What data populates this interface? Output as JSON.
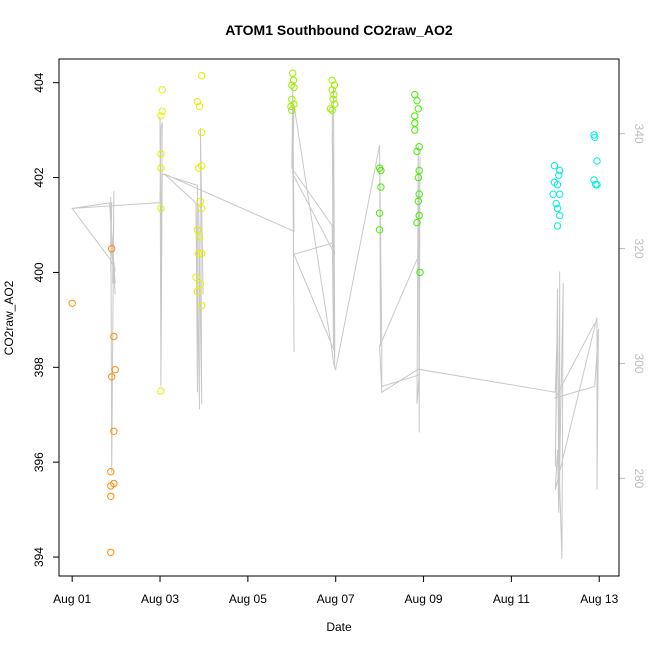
{
  "chart_data": {
    "type": "scatter",
    "title": "ATOM1 Southbound CO2raw_AO2",
    "xlabel": "Date",
    "ylabel": "CO2raw_AO2",
    "x_ticks": [
      "Aug 01",
      "Aug 03",
      "Aug 05",
      "Aug 07",
      "Aug 09",
      "Aug 11",
      "Aug 13"
    ],
    "x_tick_days": [
      1,
      3,
      5,
      7,
      9,
      11,
      13
    ],
    "xlim_days": [
      0.7,
      13.45
    ],
    "ylim": [
      393.6,
      404.5
    ],
    "y_ticks": [
      394,
      396,
      398,
      400,
      402,
      404
    ],
    "y2lim": [
      263,
      353
    ],
    "y2_ticks": [
      280,
      300,
      320,
      340
    ],
    "grid": false,
    "colors": {
      "orange": "#ff8c00",
      "yellow": "#e6f000",
      "lime": "#9cf000",
      "green": "#45ee00",
      "spring": "#00ee3a",
      "cyan": "#00eedd",
      "secondary_line": "#c8c8c8",
      "secondary_axis": "#bdbdbd"
    },
    "series": [
      {
        "color": "orange",
        "points": [
          [
            1.0,
            399.35
          ],
          [
            1.9,
            400.5
          ],
          [
            1.9,
            397.8
          ],
          [
            1.95,
            398.65
          ],
          [
            1.98,
            397.95
          ],
          [
            1.95,
            396.65
          ],
          [
            1.88,
            395.8
          ],
          [
            1.88,
            395.5
          ],
          [
            1.95,
            395.55
          ],
          [
            1.88,
            395.28
          ],
          [
            1.88,
            394.1
          ]
        ]
      },
      {
        "color": "yellow",
        "points": [
          [
            3.05,
            403.85
          ],
          [
            3.05,
            403.4
          ],
          [
            3.02,
            403.3
          ],
          [
            3.02,
            402.5
          ],
          [
            3.02,
            402.2
          ],
          [
            3.02,
            401.35
          ],
          [
            3.02,
            397.5
          ],
          [
            3.85,
            403.6
          ],
          [
            3.9,
            403.5
          ],
          [
            3.95,
            404.15
          ],
          [
            3.95,
            402.95
          ],
          [
            3.95,
            402.25
          ],
          [
            3.88,
            402.2
          ],
          [
            3.92,
            401.5
          ],
          [
            3.95,
            401.35
          ],
          [
            3.85,
            400.9
          ],
          [
            3.9,
            400.75
          ],
          [
            3.88,
            400.4
          ],
          [
            3.95,
            400.4
          ],
          [
            3.82,
            399.9
          ],
          [
            3.92,
            399.75
          ],
          [
            3.85,
            399.6
          ],
          [
            3.95,
            399.3
          ]
        ]
      },
      {
        "color": "lime",
        "points": [
          [
            6.02,
            404.2
          ],
          [
            6.04,
            404.05
          ],
          [
            6.0,
            403.95
          ],
          [
            6.05,
            403.9
          ],
          [
            6.0,
            403.65
          ],
          [
            6.05,
            403.55
          ],
          [
            5.98,
            403.5
          ],
          [
            6.0,
            403.42
          ],
          [
            6.92,
            404.05
          ],
          [
            6.97,
            403.95
          ],
          [
            6.92,
            403.85
          ],
          [
            6.96,
            403.75
          ],
          [
            6.94,
            403.65
          ],
          [
            6.98,
            403.55
          ],
          [
            6.88,
            403.45
          ],
          [
            6.92,
            403.42
          ]
        ]
      },
      {
        "color": "green",
        "points": [
          [
            8.0,
            402.2
          ],
          [
            8.03,
            402.15
          ],
          [
            8.03,
            401.8
          ],
          [
            8.0,
            401.25
          ],
          [
            8.0,
            400.9
          ],
          [
            8.8,
            403.75
          ],
          [
            8.85,
            403.62
          ],
          [
            8.88,
            403.45
          ],
          [
            8.8,
            403.3
          ],
          [
            8.8,
            403.15
          ],
          [
            8.8,
            403.0
          ],
          [
            8.9,
            402.65
          ],
          [
            8.85,
            402.55
          ],
          [
            8.9,
            402.15
          ],
          [
            8.88,
            402.0
          ],
          [
            8.9,
            401.65
          ],
          [
            8.88,
            401.5
          ],
          [
            8.9,
            401.2
          ],
          [
            8.85,
            401.05
          ],
          [
            8.92,
            400.0
          ]
        ]
      },
      {
        "color": "cyan",
        "points": [
          [
            11.98,
            402.25
          ],
          [
            12.1,
            402.15
          ],
          [
            12.08,
            402.05
          ],
          [
            11.98,
            401.9
          ],
          [
            12.05,
            401.85
          ],
          [
            12.1,
            401.65
          ],
          [
            11.95,
            401.65
          ],
          [
            12.02,
            401.45
          ],
          [
            12.05,
            401.35
          ],
          [
            12.1,
            401.2
          ],
          [
            12.05,
            400.98
          ],
          [
            12.88,
            402.9
          ],
          [
            12.9,
            402.85
          ],
          [
            12.95,
            402.35
          ],
          [
            12.88,
            401.95
          ],
          [
            12.92,
            401.85
          ],
          [
            12.95,
            401.85
          ]
        ]
      }
    ],
    "secondary_series": [
      {
        "name": "",
        "points": [
          [
            1.0,
            327
          ],
          [
            1.9,
            328
          ],
          [
            1.88,
            316
          ],
          [
            1.88,
            329
          ],
          [
            1.9,
            281
          ],
          [
            1.95,
            330
          ],
          [
            1.92,
            314
          ],
          [
            1.98,
            314
          ],
          [
            1.85,
            328
          ],
          [
            1.98,
            312
          ],
          [
            1.9,
            320
          ],
          [
            1.98,
            316
          ],
          [
            1.88,
            318
          ],
          [
            1.0,
            327
          ],
          [
            3.0,
            328
          ],
          [
            3.02,
            341
          ],
          [
            3.05,
            342
          ],
          [
            3.02,
            299
          ],
          [
            3.02,
            328
          ],
          [
            3.0,
            343
          ],
          [
            3.02,
            296
          ],
          [
            3.05,
            333
          ],
          [
            3.85,
            331
          ],
          [
            3.85,
            295
          ],
          [
            3.82,
            328
          ],
          [
            3.9,
            292
          ],
          [
            3.88,
            327
          ],
          [
            3.95,
            293
          ],
          [
            3.92,
            341
          ],
          [
            3.98,
            312
          ],
          [
            3.95,
            327
          ],
          [
            3.1,
            333
          ],
          [
            6.05,
            323
          ],
          [
            6.02,
            348
          ],
          [
            6.05,
            303
          ],
          [
            6.02,
            340
          ],
          [
            6.05,
            302
          ],
          [
            6.02,
            347
          ],
          [
            6.0,
            334
          ],
          [
            6.92,
            324
          ],
          [
            6.95,
            303
          ],
          [
            6.92,
            345
          ],
          [
            6.98,
            299
          ],
          [
            6.92,
            340
          ],
          [
            6.97,
            301
          ],
          [
            6.95,
            348
          ],
          [
            6.98,
            302
          ],
          [
            6.05,
            319
          ],
          [
            6.95,
            321
          ],
          [
            6.98,
            319
          ],
          [
            6.02,
            333
          ],
          [
            6.05,
            345
          ],
          [
            6.92,
            302
          ],
          [
            6.95,
            300
          ],
          [
            7.0,
            299
          ],
          [
            8.0,
            338
          ],
          [
            8.02,
            303
          ],
          [
            8.0,
            337
          ],
          [
            8.05,
            304
          ],
          [
            8.05,
            296
          ],
          [
            8.9,
            298
          ],
          [
            8.85,
            293
          ],
          [
            8.88,
            338
          ],
          [
            8.9,
            288
          ],
          [
            8.92,
            336
          ],
          [
            8.9,
            319
          ],
          [
            8.0,
            303
          ],
          [
            8.05,
            295
          ],
          [
            8.88,
            299
          ],
          [
            12.0,
            295
          ],
          [
            12.05,
            307
          ],
          [
            12.0,
            282
          ],
          [
            12.05,
            313
          ],
          [
            12.08,
            275
          ],
          [
            12.1,
            316
          ],
          [
            12.1,
            279
          ],
          [
            12.15,
            266
          ],
          [
            12.18,
            314
          ],
          [
            12.08,
            274
          ],
          [
            12.05,
            285
          ],
          [
            12.0,
            278
          ],
          [
            12.95,
            308
          ],
          [
            12.95,
            278
          ],
          [
            12.98,
            306
          ],
          [
            12.9,
            296
          ],
          [
            12.0,
            294
          ],
          [
            12.9,
            307
          ]
        ]
      }
    ]
  }
}
